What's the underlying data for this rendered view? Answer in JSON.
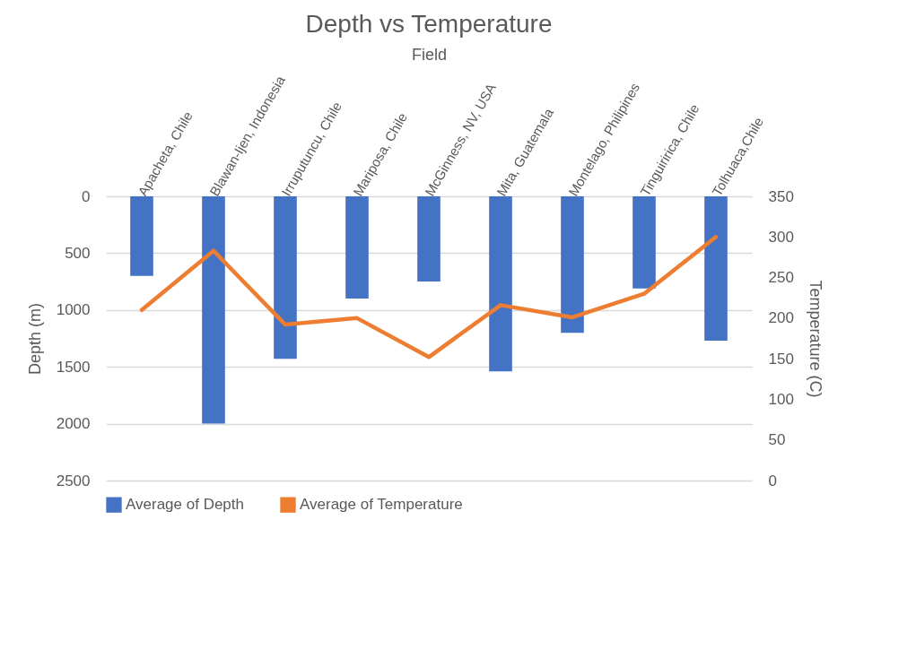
{
  "chart_data": {
    "type": "bar",
    "title": "Depth vs Temperature",
    "xlabel": "Field",
    "ylabel": "Depth (m)",
    "y2label": "Temperature (C)",
    "categories": [
      "Apacheta, Chile",
      "Blawan-Ijen, Indonesia",
      "Irruputuncu, Chile",
      "Mariposa, Chile",
      "McGinness, NV, USA",
      "Mita, Guatemala",
      "Montelago, Philipines",
      "Tinguiririca, Chile",
      "Tolhuaca,Chile"
    ],
    "series": [
      {
        "name": "Average of Depth",
        "color": "#4472c4",
        "values": [
          700,
          2000,
          1430,
          900,
          750,
          1540,
          1200,
          810,
          1270
        ]
      },
      {
        "name": "Average of Temperature",
        "type": "line",
        "axis": "y2",
        "color": "#ed7d31",
        "values": [
          210,
          283,
          192,
          200,
          152,
          216,
          201,
          230,
          300
        ]
      }
    ],
    "ylim": [
      2500,
      0
    ],
    "yticks": [
      0,
      500,
      1000,
      1500,
      2000,
      2500
    ],
    "y2lim": [
      0,
      350
    ],
    "y2ticks": [
      0,
      50,
      100,
      150,
      200,
      250,
      300,
      350
    ],
    "grid": "y",
    "legend": "bottom",
    "marker": "none",
    "line_style": "solid"
  }
}
